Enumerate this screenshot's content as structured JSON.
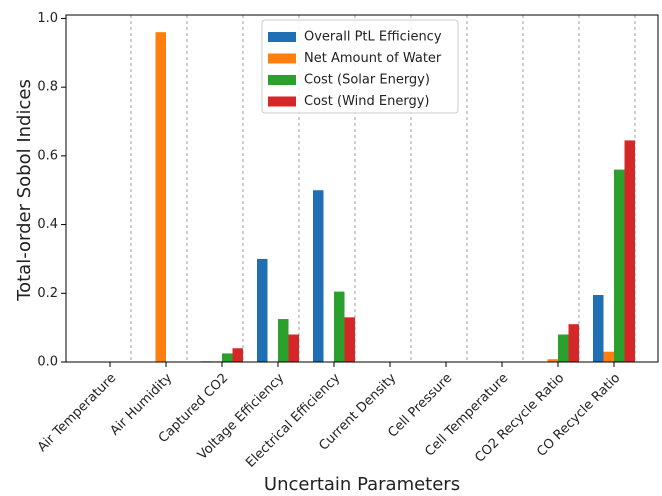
{
  "chart_data": {
    "type": "bar",
    "x_label": "Uncertain Parameters",
    "y_label": "Total-order Sobol Indices",
    "categories": [
      "Air Temperature",
      "Air Humidity",
      "Captured CO2",
      "Voltage Efficiency",
      "Electrical Efficiency",
      "Current Density",
      "Cell Pressure",
      "Cell Temperature",
      "CO2 Recycle Ratio",
      "CO Recycle Ratio"
    ],
    "series": [
      {
        "name": "Overall PtL Efficiency",
        "color": "#1f6fb4",
        "values": [
          0,
          0,
          0.002,
          0.3,
          0.5,
          0,
          0,
          0,
          0,
          0.195
        ]
      },
      {
        "name": "Net Amount of Water",
        "color": "#ff7f0e",
        "values": [
          0,
          0.96,
          0.002,
          0,
          0,
          0,
          0,
          0,
          0.008,
          0.03
        ]
      },
      {
        "name": "Cost (Solar Energy)",
        "color": "#2ca02c",
        "values": [
          0,
          0,
          0.025,
          0.125,
          0.205,
          0,
          0,
          0,
          0.08,
          0.56
        ]
      },
      {
        "name": "Cost (Wind Energy)",
        "color": "#d62728",
        "values": [
          0,
          0,
          0.04,
          0.08,
          0.13,
          0,
          0,
          0,
          0.11,
          0.645
        ]
      }
    ],
    "ylim": [
      0,
      1.01
    ],
    "yticks": [
      {
        "value": 0,
        "label": "0.0"
      },
      0.2,
      0.4,
      0.6,
      0.8,
      {
        "value": 1,
        "label": "1.0"
      }
    ],
    "legend": "upper center"
  }
}
